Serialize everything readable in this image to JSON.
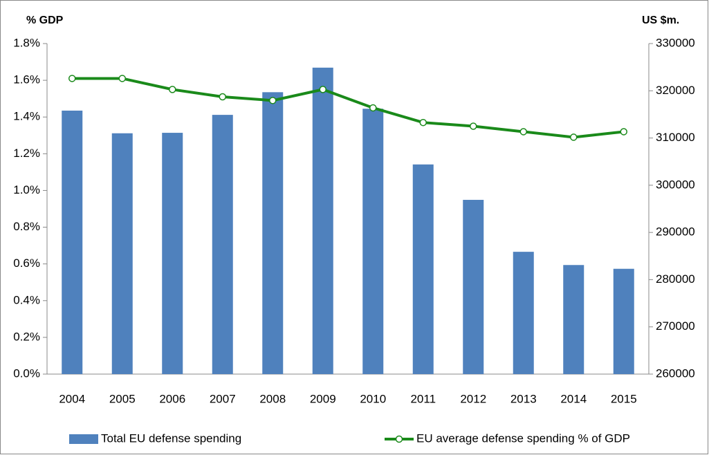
{
  "chart_data": {
    "type": "bar-line",
    "y_label": "% GDP",
    "y2_label": "US $m.",
    "categories": [
      "2004",
      "2005",
      "2006",
      "2007",
      "2008",
      "2009",
      "2010",
      "2011",
      "2012",
      "2013",
      "2014",
      "2015"
    ],
    "series": [
      {
        "name": "Total EU defense spending",
        "type": "bar",
        "color": "#4f81bd",
        "axis": "y2",
        "values": [
          315800,
          311000,
          311100,
          314900,
          319700,
          324900,
          316200,
          304400,
          296900,
          285900,
          283100,
          282300
        ]
      },
      {
        "name": "EU average defense spending % of GDP",
        "type": "line",
        "color": "#1a8a1a",
        "axis": "y",
        "values": [
          1.61,
          1.61,
          1.55,
          1.51,
          1.49,
          1.55,
          1.45,
          1.37,
          1.35,
          1.32,
          1.29,
          1.32
        ]
      }
    ],
    "ylim": [
      0,
      1.8
    ],
    "yticks": [
      {
        "value": 0,
        "label": "0.0%"
      },
      {
        "value": 0.2,
        "label": "0.2%"
      },
      {
        "value": 0.4,
        "label": "0.4%"
      },
      {
        "value": 0.6,
        "label": "0.6%"
      },
      {
        "value": 0.8,
        "label": "0.8%"
      },
      {
        "value": 1.0,
        "label": "1.0%"
      },
      {
        "value": 1.2,
        "label": "1.2%"
      },
      {
        "value": 1.4,
        "label": "1.4%"
      },
      {
        "value": 1.6,
        "label": "1.6%"
      },
      {
        "value": 1.8,
        "label": "1.8%"
      }
    ],
    "y2lim": [
      260000,
      330000
    ],
    "y2ticks": [
      260000,
      270000,
      280000,
      290000,
      300000,
      310000,
      320000,
      330000
    ],
    "grid": false,
    "legend": "bottom"
  }
}
